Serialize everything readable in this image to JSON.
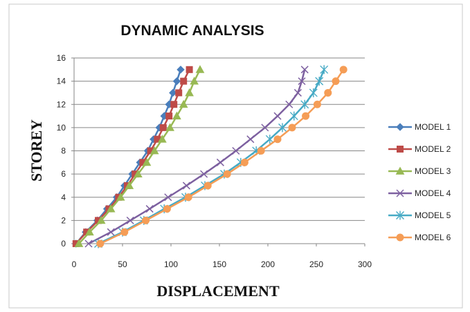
{
  "chart_data": {
    "type": "line",
    "title": "DYNAMIC ANALYSIS",
    "xlabel": "DISPLACEMENT",
    "ylabel": "STOREY",
    "xlim": [
      0,
      300
    ],
    "ylim": [
      0,
      16
    ],
    "xticks": [
      0,
      50,
      100,
      150,
      200,
      250,
      300
    ],
    "yticks": [
      0,
      2,
      4,
      6,
      8,
      10,
      12,
      14,
      16
    ],
    "grid": "horizontal",
    "legend_position": "right",
    "series": [
      {
        "name": "MODEL 1",
        "color": "#4a7ebb",
        "marker": "diamond",
        "x": [
          2,
          12,
          24,
          34,
          44,
          52,
          60,
          68,
          76,
          82,
          88,
          93,
          98,
          102,
          106,
          110
        ],
        "y": [
          0,
          1,
          2,
          3,
          4,
          5,
          6,
          7,
          8,
          9,
          10,
          11,
          12,
          13,
          14,
          15
        ]
      },
      {
        "name": "MODEL 2",
        "color": "#be4b48",
        "marker": "square",
        "x": [
          2,
          13,
          25,
          36,
          46,
          55,
          63,
          71,
          79,
          86,
          92,
          98,
          103,
          108,
          113,
          119
        ],
        "y": [
          0,
          1,
          2,
          3,
          4,
          5,
          6,
          7,
          8,
          9,
          10,
          11,
          12,
          13,
          14,
          15
        ]
      },
      {
        "name": "MODEL 3",
        "color": "#98b954",
        "marker": "triangle",
        "x": [
          5,
          16,
          28,
          38,
          48,
          57,
          66,
          75,
          83,
          91,
          99,
          106,
          113,
          119,
          124,
          130
        ],
        "y": [
          0,
          1,
          2,
          3,
          4,
          5,
          6,
          7,
          8,
          9,
          10,
          11,
          12,
          13,
          14,
          15
        ]
      },
      {
        "name": "MODEL 4",
        "color": "#7d60a0",
        "marker": "x",
        "x": [
          15,
          38,
          58,
          78,
          97,
          116,
          134,
          151,
          167,
          182,
          197,
          210,
          222,
          231,
          235,
          238
        ],
        "y": [
          0,
          1,
          2,
          3,
          4,
          5,
          6,
          7,
          8,
          9,
          10,
          11,
          12,
          13,
          14,
          15
        ]
      },
      {
        "name": "MODEL 5",
        "color": "#46aac5",
        "marker": "asterisk",
        "x": [
          25,
          50,
          72,
          93,
          115,
          135,
          155,
          172,
          188,
          202,
          215,
          227,
          238,
          247,
          253,
          258
        ],
        "y": [
          0,
          1,
          2,
          3,
          4,
          5,
          6,
          7,
          8,
          9,
          10,
          11,
          12,
          13,
          14,
          15
        ]
      },
      {
        "name": "MODEL 6",
        "color": "#f59d56",
        "marker": "circle",
        "x": [
          27,
          52,
          74,
          96,
          118,
          138,
          158,
          176,
          193,
          210,
          225,
          239,
          251,
          262,
          270,
          278
        ],
        "y": [
          0,
          1,
          2,
          3,
          4,
          5,
          6,
          7,
          8,
          9,
          10,
          11,
          12,
          13,
          14,
          15
        ]
      }
    ]
  }
}
